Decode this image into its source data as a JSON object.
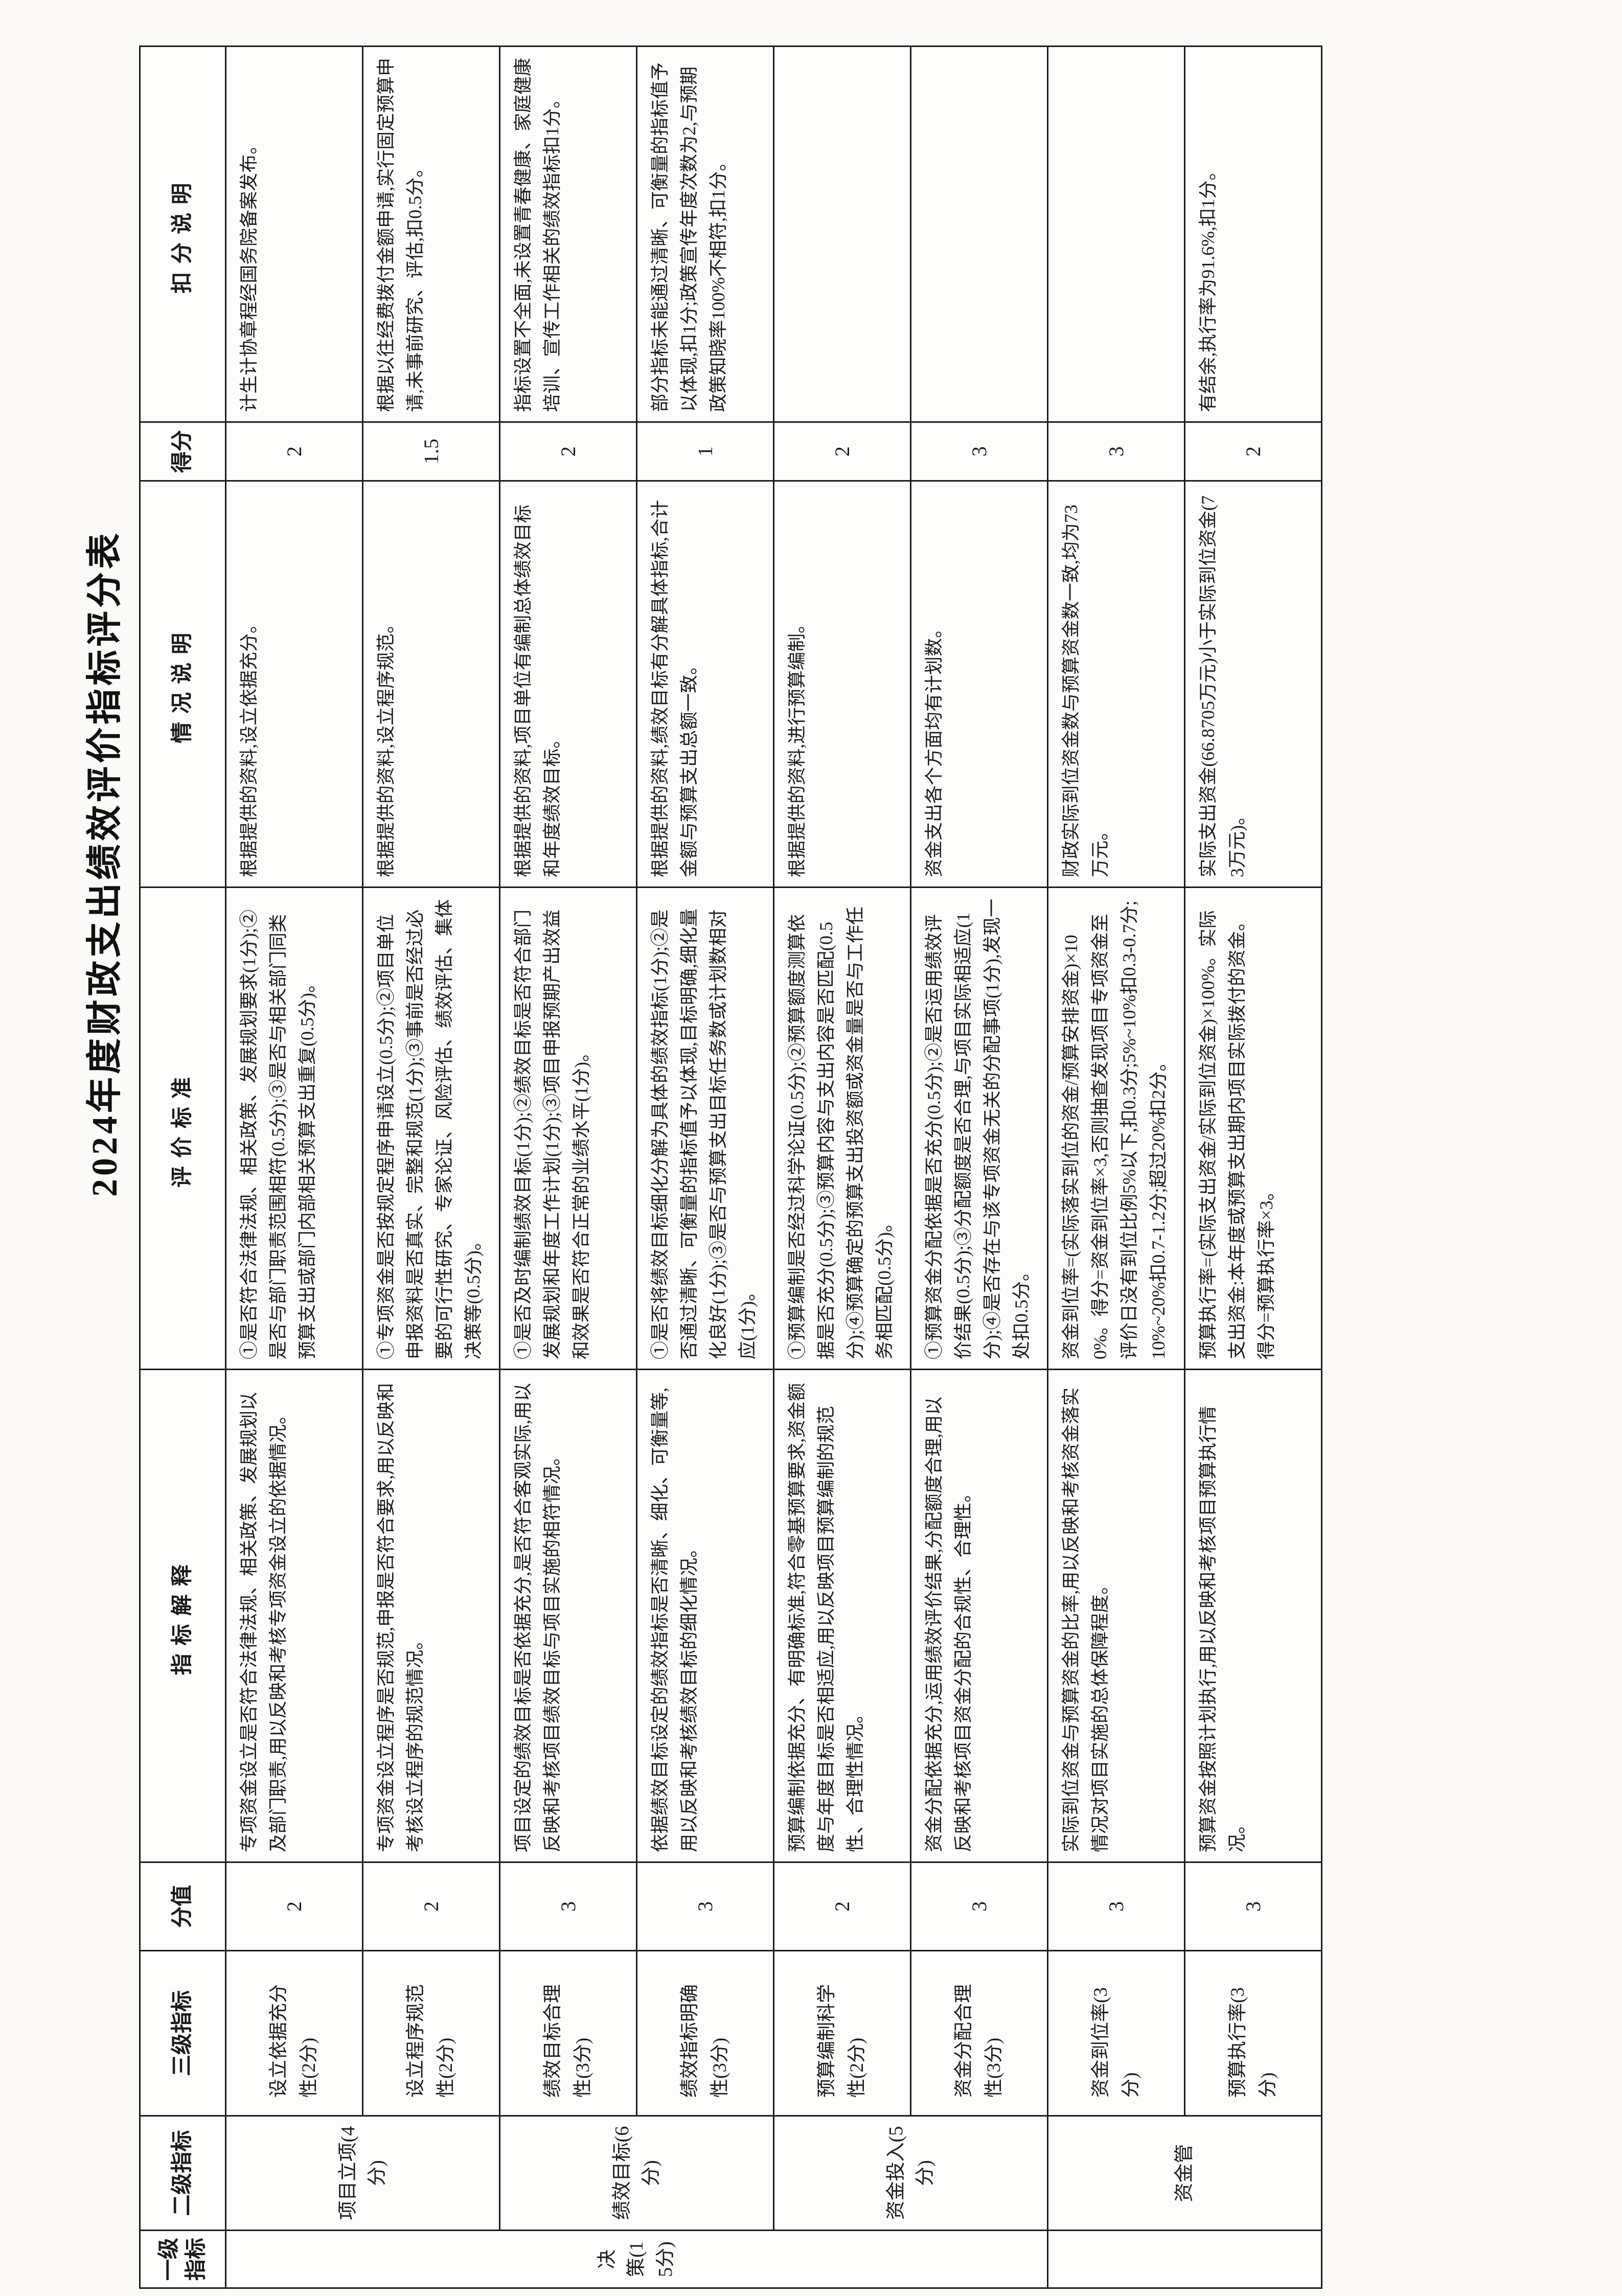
{
  "title": "2024年度财政支出绩效评价指标评分表",
  "columns": {
    "level1": "一级指标",
    "level2": "二级指标",
    "level3": "三级指标",
    "score_max": "分值",
    "explanation": "指标解释",
    "criteria": "评价标准",
    "situation": "情况说明",
    "score": "得分",
    "deduction": "扣分说明"
  },
  "level1_groups": [
    {
      "label": "决策(15分)",
      "rows": 6
    },
    {
      "label": "",
      "rows": 2
    }
  ],
  "level2_groups": [
    {
      "label": "项目立项(4分)",
      "rows": 2
    },
    {
      "label": "绩效目标(6分)",
      "rows": 2
    },
    {
      "label": "资金投入(5分)",
      "rows": 2
    },
    {
      "label": "资金管",
      "rows": 2
    }
  ],
  "rows": [
    {
      "level3": "设立依据充分性(2分)",
      "score_max": "2",
      "explanation": "专项资金设立是否符合法律法规、相关政策、发展规划以及部门职责,用以反映和考核专项资金设立的依据情况。",
      "criteria": "①是否符合法律法规、相关政策、发展规划要求(1分);②是否与部门职责范围相符(0.5分);③是否与相关部门同类预算支出或部门内部相关预算支出重复(0.5分)。",
      "situation": "根据提供的资料,设立依据充分。",
      "score": "2",
      "deduction": "计生计协章程经国务院备案发布。"
    },
    {
      "level3": "设立程序规范性(2分)",
      "score_max": "2",
      "explanation": "专项资金设立程序是否规范,申报是否符合要求,用以反映和考核设立程序的规范情况。",
      "criteria": "①专项资金是否按规定程序申请设立(0.5分);②项目单位申报资料是否真实、完整和规范(1分);③事前是否经过必要的可行性研究、专家论证、风险评估、绩效评估、集体决策等(0.5分)。",
      "situation": "根据提供的资料,设立程序规范。",
      "score": "1.5",
      "deduction": "根据以往经费拨付金额申请,实行固定预算申请,未事前研究、评估,扣0.5分。"
    },
    {
      "level3": "绩效目标合理性(3分)",
      "score_max": "3",
      "explanation": "项目设定的绩效目标是否依据充分,是否符合客观实际,用以反映和考核项目绩效目标与项目实施的相符情况。",
      "criteria": "①是否及时编制绩效目标(1分);②绩效目标是否符合部门发展规划和年度工作计划(1分);③项目申报预期产出效益和效果是否符合正常的业绩水平(1分)。",
      "situation": "根据提供的资料,项目单位有编制总体绩效目标和年度绩效目标。",
      "score": "2",
      "deduction": "指标设置不全面,未设置青春健康、家庭健康培训、宣传工作相关的绩效指标扣1分。"
    },
    {
      "level3": "绩效指标明确性(3分)",
      "score_max": "3",
      "explanation": "依据绩效目标设定的绩效指标是否清晰、细化、可衡量等,用以反映和考核绩效目标的细化情况。",
      "criteria": "①是否将绩效目标细化分解为具体的绩效指标(1分);②是否通过清晰、可衡量的指标值予以体现,目标明确,细化量化良好(1分);③是否与预算支出目标任务数或计划数相对应(1分)。",
      "situation": "根据提供的资料,绩效目标有分解具体指标,合计金额与预算支出总额一致。",
      "score": "1",
      "deduction": "部分指标未能通过清晰、可衡量的指标值予以体现,扣1分;政策宣传年度次数为2,与预期政策知晓率100%不相符,扣1分。"
    },
    {
      "level3": "预算编制科学性(2分)",
      "score_max": "2",
      "explanation": "预算编制依据充分、有明确标准,符合零基预算要求,资金额度与年度目标是否相适应,用以反映项目预算编制的规范性、合理性情况。",
      "criteria": "①预算编制是否经过科学论证(0.5分);②预算额度测算依据是否充分(0.5分);③预算内容与支出内容是否匹配(0.5分);④预算确定的预算支出投资额或资金量是否与工作任务相匹配(0.5分)。",
      "situation": "根据提供的资料,进行预算编制。",
      "score": "2",
      "deduction": ""
    },
    {
      "level3": "资金分配合理性(3分)",
      "score_max": "3",
      "explanation": "资金分配依据充分,运用绩效评价结果,分配额度合理,用以反映和考核项目资金分配的合规性、合理性。",
      "criteria": "①预算资金分配依据是否充分(0.5分);②是否运用绩效评价结果(0.5分);③分配额度是否合理,与项目实际相适应(1分);④是否存在与该专项资金无关的分配事项(1分),发现一处扣0.5分。",
      "situation": "资金支出各个方面均有计划数。",
      "score": "3",
      "deduction": ""
    },
    {
      "level3": "资金到位率(3分)",
      "score_max": "3",
      "explanation": "实际到位资金与预算资金的比率,用以反映和考核资金落实情况对项目实施的总体保障程度。",
      "criteria": "资金到位率=(实际落实到位的资金/预算安排资金)×100%。得分=资金到位率×3,否则抽查发现项目专项资金至评价日没有到位比例5%以下,扣0.3分;5%~10%扣0.3-0.7分;10%~20%扣0.7-1.2分;超过20%扣2分。",
      "situation": "财政实际到位资金数与预算资金数一致,均为73万元。",
      "score": "3",
      "deduction": ""
    },
    {
      "level3": "预算执行率(3分)",
      "score_max": "3",
      "explanation": "预算资金按照计划执行,用以反映和考核项目预算执行情况。",
      "criteria": "预算执行率=(实际支出资金/实际到位资金)×100%。实际支出资金:本年度或预算支出期内项目实际拨付的资金。得分=预算执行率×3。",
      "situation": "实际支出资金(66.8705万元)小于实际到位资金(73万元)。",
      "score": "2",
      "deduction": "有结余,执行率为91.6%,扣1分。"
    }
  ]
}
